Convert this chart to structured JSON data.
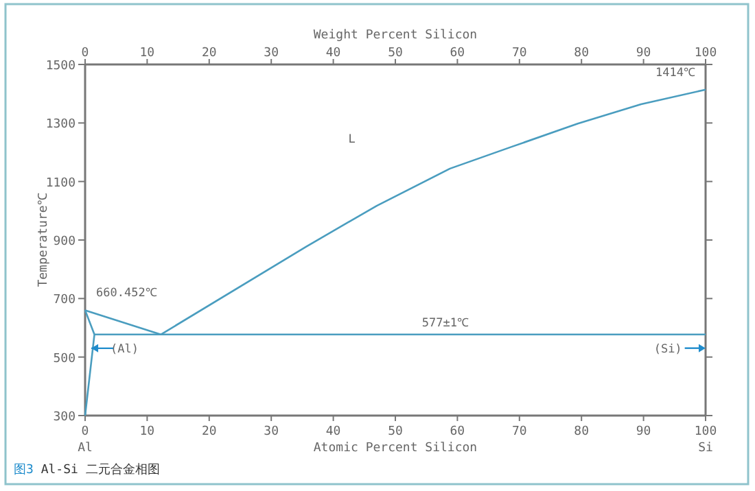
{
  "chart_data": {
    "type": "line",
    "xlabel": "Atomic Percent Silicon",
    "x2label": "Weight Percent Silicon",
    "ylabel": "Temperature℃",
    "xlim": [
      0,
      100
    ],
    "xticks": [
      {
        "value": 0,
        "label": "0\nAl"
      },
      10,
      20,
      30,
      40,
      50,
      60,
      70,
      80,
      90,
      {
        "value": 100,
        "label": "100\nSi"
      }
    ],
    "x2lim": [
      0,
      100
    ],
    "x2ticks": [
      0,
      10,
      20,
      30,
      40,
      50,
      60,
      70,
      80,
      90,
      100
    ],
    "ylim": [
      300,
      1500
    ],
    "yticks": [
      300,
      500,
      700,
      900,
      1100,
      1300,
      1500
    ],
    "marker": "none",
    "line_style": "solid",
    "series": [
      {
        "color": "#4a9dbf",
        "x": [
          0,
          12.2,
          35.6,
          47,
          58.8,
          68.8,
          79.4,
          89.6,
          100
        ],
        "values": [
          660,
          577,
          877,
          1017,
          1144,
          1219,
          1298,
          1364,
          1414
        ]
      },
      {
        "color": "#4a9dbf",
        "x": [
          0,
          1.5,
          0
        ],
        "values": [
          660,
          577,
          300
        ]
      },
      {
        "color": "#4a9dbf",
        "x": [
          1.5,
          100
        ],
        "values": [
          577,
          577
        ]
      }
    ],
    "annotations": [
      {
        "text": "660.452℃",
        "x": 0,
        "y": 660
      },
      {
        "text": "577±1℃",
        "x": 58,
        "y": 577
      },
      {
        "text": "1414℃",
        "x": 100,
        "y": 1414
      },
      "L",
      {
        "text": "(Al)",
        "x": 1,
        "y": 530
      },
      "(Si)",
      "图3 Al-Si 二元合金相图"
    ]
  }
}
